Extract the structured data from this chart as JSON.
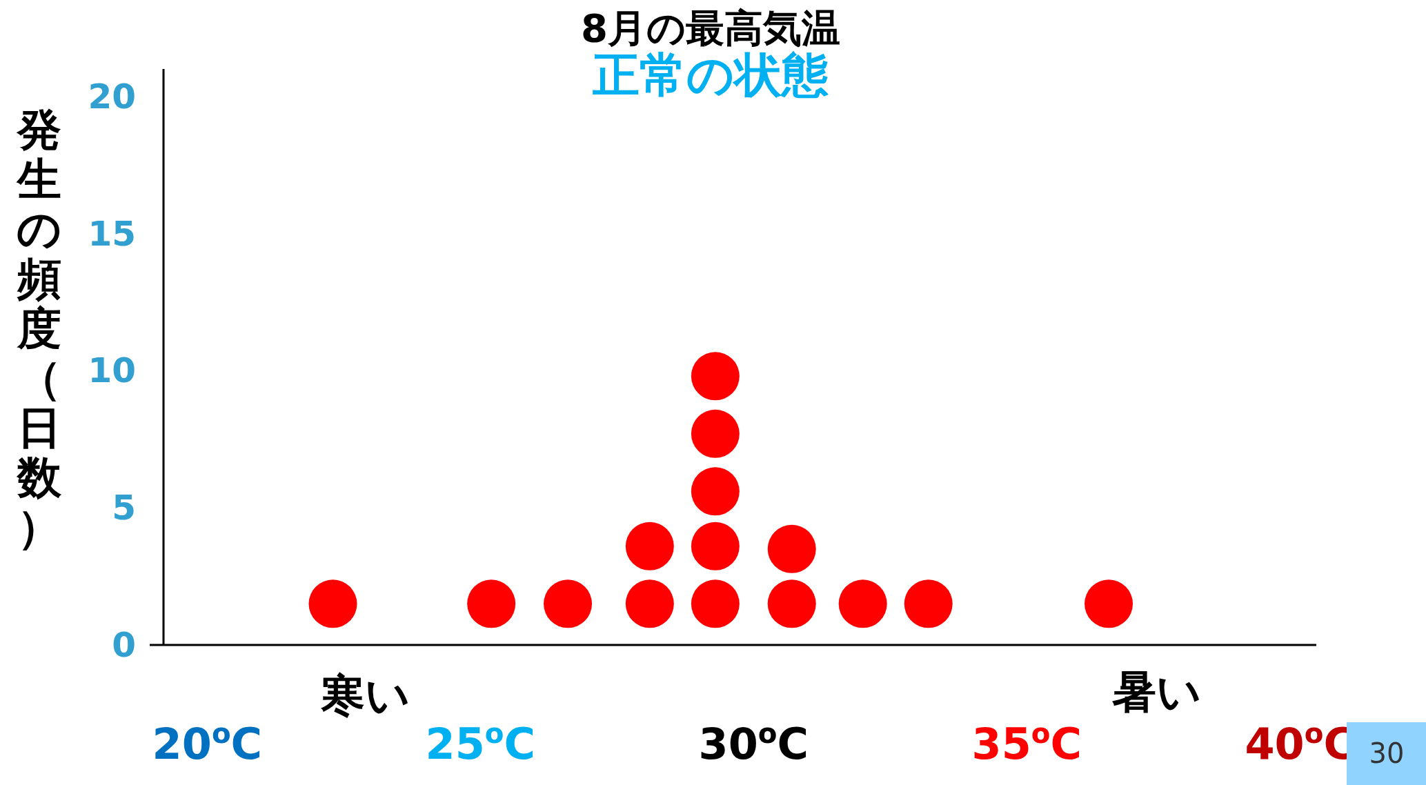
{
  "chart_data": {
    "type": "scatter",
    "title": "8月の最高気温",
    "subtitle": "正常の状態",
    "ylabel": "発生の頻度（日数）",
    "x": [
      22.3,
      25.2,
      26.6,
      28.1,
      28.1,
      29.3,
      29.3,
      29.3,
      29.3,
      29.3,
      30.7,
      30.7,
      32.0,
      33.2,
      36.5
    ],
    "series": [
      {
        "color": "#ff0000",
        "values": [
          1.5,
          1.5,
          1.5,
          1.5,
          3.6,
          1.5,
          3.6,
          5.6,
          7.7,
          9.8,
          1.5,
          3.5,
          1.5,
          1.5,
          1.5
        ]
      }
    ],
    "marker": "circle",
    "xlim": [
      19.2,
      40.3
    ],
    "xticks": [
      {
        "value": 20,
        "label": "20$^{o}$C"
      },
      {
        "value": 25,
        "label": "25$^{o}$C"
      },
      {
        "value": 30,
        "label": "30$^{o}$C"
      },
      {
        "value": 35,
        "label": "35$^{o}$C"
      },
      {
        "value": 40,
        "label": "40$^{o}$C"
      }
    ],
    "ylim": [
      0,
      21
    ],
    "yticks": [
      0,
      5,
      10,
      15,
      20
    ],
    "grid": false,
    "annotations": [
      "寒い",
      "暑い",
      "30"
    ]
  }
}
